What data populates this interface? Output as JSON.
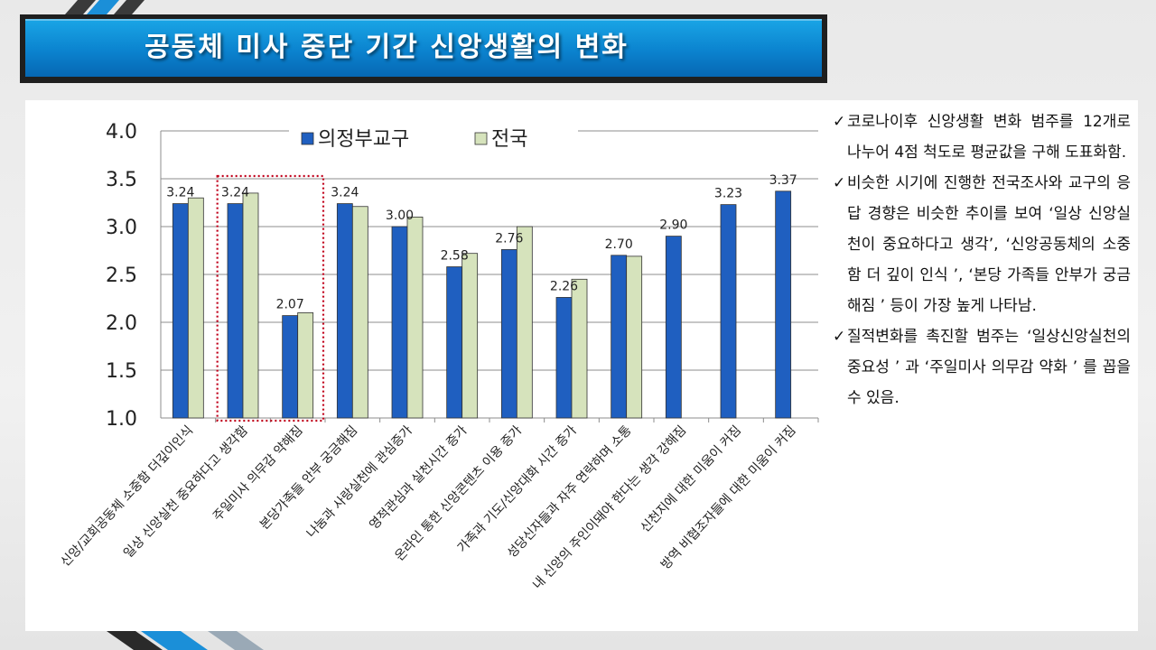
{
  "slide": {
    "title": "공동체 미사 중단 기간 신앙생활의 변화"
  },
  "notes": [
    {
      "text": "코로나이후 신앙생활 변화 범주를 12개로 나누어 4점 척도로 평균값을 구해 도표화함."
    },
    {
      "text": "비슷한 시기에 진행한 전국조사와 교구의 응답 경향은 비슷한 추이를 보여 ‘일상 신앙실천이 중요하다고 생각’, ‘신앙공동체의 소중함 더 깊이 인식 ’, ‘본당 가족들 안부가 궁금해짐 ’ 등이 가장 높게 나타남."
    },
    {
      "text": "질적변화를 촉진할 범주는 ‘일상신앙실천의 중요성 ’ 과 ‘주일미사 의무감 약화 ’ 를 꼽을 수 있음."
    }
  ],
  "chart_data": {
    "type": "bar",
    "categories": [
      "신앙/교회공동체 소중함 더깊이인식",
      "일상 신앙실천 중요하다고 생각함",
      "주일미사 의무감 약해짐",
      "본당가족들 안부 궁금해짐",
      "나눔과 사랑실천에 관심증가",
      "영적관심과 실천시간 증가",
      "온라인 통한 신앙콘텐츠 이용 증가",
      "가족과 기도/신앙대화 시간 증가",
      "성당신자들과 자주 연락하며 소통",
      "내 신앙의 주인이돼야 한다는 생각 강해짐",
      "신천지에 대한 미움이 커짐",
      "방역 비협조자들에 대한 미움이 커짐"
    ],
    "series": [
      {
        "name": "의정부교구",
        "color": "#1f5fc0",
        "values": [
          3.24,
          3.24,
          2.07,
          3.24,
          3.0,
          2.58,
          2.76,
          2.26,
          2.7,
          2.9,
          3.23,
          3.37
        ],
        "labels": [
          "3.24",
          "3.24",
          "2.07",
          "3.24",
          "3.00",
          "2.58",
          "2.76",
          "2.26",
          "2.70",
          "2.90",
          "3.23",
          "3.37"
        ]
      },
      {
        "name": "전국",
        "color": "#d6e3bc",
        "values": [
          3.3,
          3.35,
          2.1,
          3.21,
          3.1,
          2.72,
          3.0,
          2.45,
          2.69,
          null,
          null,
          null
        ]
      }
    ],
    "ylim": [
      1.0,
      4.0
    ],
    "yticks": [
      "1.0",
      "1.5",
      "2.0",
      "2.5",
      "3.0",
      "3.5",
      "4.0"
    ],
    "ytick_values": [
      1.0,
      1.5,
      2.0,
      2.5,
      3.0,
      3.5,
      4.0
    ],
    "grid": true,
    "legend_position": "top",
    "highlight_categories": [
      1,
      2
    ],
    "highlight_color": "#c0001a"
  }
}
